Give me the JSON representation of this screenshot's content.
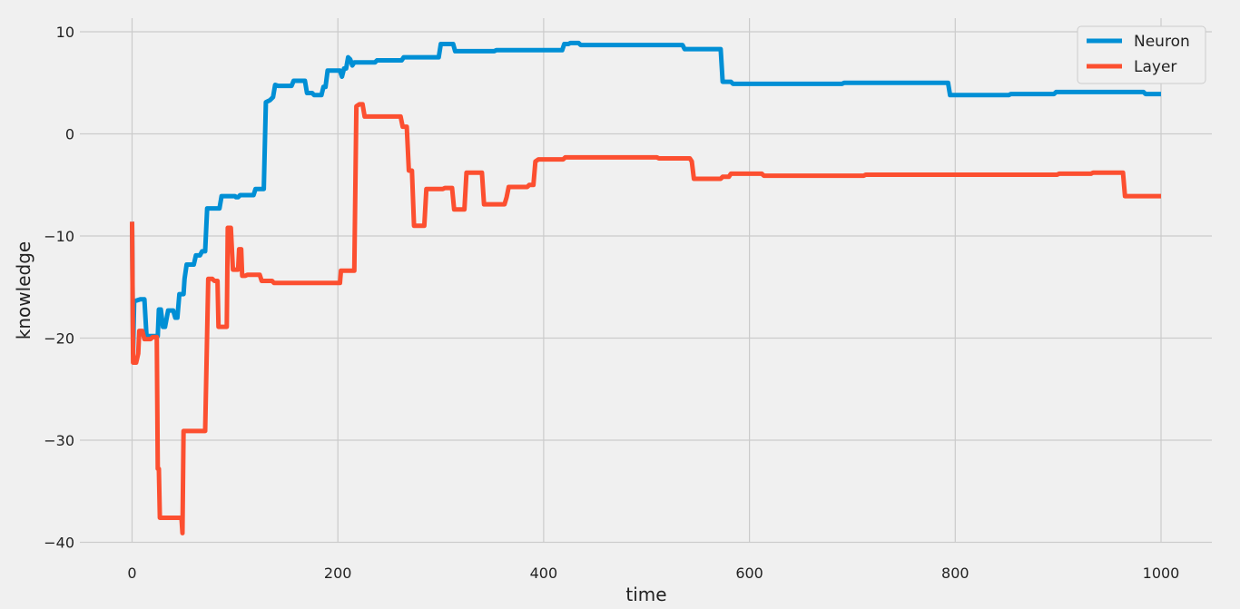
{
  "chart_data": {
    "type": "line",
    "title": "",
    "xlabel": "time",
    "ylabel": "knowledge",
    "xlim": [
      -50,
      1050
    ],
    "ylim": [
      -41,
      11
    ],
    "xticks": [
      0,
      200,
      400,
      600,
      800,
      1000
    ],
    "yticks": [
      10,
      0,
      -10,
      -20,
      -30,
      -40
    ],
    "xtick_labels": [
      "0",
      "200",
      "400",
      "600",
      "800",
      "1000"
    ],
    "ytick_labels": [
      "10",
      "0",
      "−10",
      "−20",
      "−30",
      "−40"
    ],
    "grid": true,
    "legend_position": "top-right",
    "series": [
      {
        "name": "Neuron",
        "color": "#008fd5",
        "points": [
          [
            0,
            -8.6
          ],
          [
            1,
            -21.5
          ],
          [
            2,
            -16.4
          ],
          [
            8,
            -16.2
          ],
          [
            12,
            -16.2
          ],
          [
            14,
            -19.8
          ],
          [
            25,
            -19.8
          ],
          [
            26,
            -17.2
          ],
          [
            28,
            -17.2
          ],
          [
            30,
            -18.9
          ],
          [
            32,
            -18.9
          ],
          [
            35,
            -17.3
          ],
          [
            40,
            -17.3
          ],
          [
            42,
            -18.0
          ],
          [
            44,
            -18.0
          ],
          [
            46,
            -15.7
          ],
          [
            50,
            -15.7
          ],
          [
            51,
            -14.2
          ],
          [
            53,
            -12.8
          ],
          [
            60,
            -12.8
          ],
          [
            62,
            -11.9
          ],
          [
            66,
            -11.9
          ],
          [
            68,
            -11.5
          ],
          [
            71,
            -11.5
          ],
          [
            73,
            -7.3
          ],
          [
            85,
            -7.3
          ],
          [
            87,
            -6.1
          ],
          [
            100,
            -6.1
          ],
          [
            101,
            -6.2
          ],
          [
            103,
            -6.2
          ],
          [
            105,
            -6.0
          ],
          [
            118,
            -6.0
          ],
          [
            120,
            -5.4
          ],
          [
            128,
            -5.4
          ],
          [
            130,
            3.1
          ],
          [
            134,
            3.3
          ],
          [
            137,
            3.6
          ],
          [
            139,
            4.8
          ],
          [
            142,
            4.7
          ],
          [
            155,
            4.7
          ],
          [
            157,
            5.2
          ],
          [
            168,
            5.2
          ],
          [
            170,
            4.0
          ],
          [
            175,
            4.0
          ],
          [
            177,
            3.8
          ],
          [
            184,
            3.8
          ],
          [
            186,
            4.6
          ],
          [
            188,
            4.6
          ],
          [
            190,
            6.2
          ],
          [
            202,
            6.2
          ],
          [
            204,
            5.6
          ],
          [
            206,
            6.4
          ],
          [
            208,
            6.4
          ],
          [
            210,
            7.5
          ],
          [
            212,
            7.3
          ],
          [
            214,
            6.7
          ],
          [
            216,
            7.0
          ],
          [
            236,
            7.0
          ],
          [
            238,
            7.2
          ],
          [
            262,
            7.2
          ],
          [
            264,
            7.5
          ],
          [
            298,
            7.5
          ],
          [
            300,
            8.8
          ],
          [
            312,
            8.8
          ],
          [
            314,
            8.1
          ],
          [
            352,
            8.1
          ],
          [
            354,
            8.2
          ],
          [
            418,
            8.2
          ],
          [
            420,
            8.8
          ],
          [
            424,
            8.8
          ],
          [
            426,
            8.9
          ],
          [
            434,
            8.9
          ],
          [
            436,
            8.7
          ],
          [
            535,
            8.7
          ],
          [
            537,
            8.3
          ],
          [
            572,
            8.3
          ],
          [
            574,
            5.1
          ],
          [
            582,
            5.1
          ],
          [
            584,
            4.9
          ],
          [
            690,
            4.9
          ],
          [
            692,
            5.0
          ],
          [
            793,
            5.0
          ],
          [
            795,
            3.8
          ],
          [
            852,
            3.8
          ],
          [
            854,
            3.9
          ],
          [
            896,
            3.9
          ],
          [
            898,
            4.1
          ],
          [
            983,
            4.1
          ],
          [
            985,
            3.9
          ],
          [
            1000,
            3.9
          ]
        ]
      },
      {
        "name": "Layer",
        "color": "#fc4f30",
        "points": [
          [
            0,
            -8.6
          ],
          [
            1,
            -22.4
          ],
          [
            4,
            -22.4
          ],
          [
            6,
            -21.5
          ],
          [
            7,
            -19.3
          ],
          [
            10,
            -19.3
          ],
          [
            12,
            -20.1
          ],
          [
            18,
            -20.1
          ],
          [
            20,
            -19.9
          ],
          [
            24,
            -19.9
          ],
          [
            25,
            -32.8
          ],
          [
            26,
            -32.8
          ],
          [
            27,
            -37.6
          ],
          [
            48,
            -37.6
          ],
          [
            49,
            -39.1
          ],
          [
            50,
            -29.1
          ],
          [
            71,
            -29.1
          ],
          [
            74,
            -14.2
          ],
          [
            78,
            -14.2
          ],
          [
            80,
            -14.4
          ],
          [
            83,
            -14.4
          ],
          [
            84,
            -18.9
          ],
          [
            92,
            -18.9
          ],
          [
            93,
            -9.2
          ],
          [
            96,
            -9.2
          ],
          [
            98,
            -13.3
          ],
          [
            103,
            -13.3
          ],
          [
            104,
            -11.3
          ],
          [
            106,
            -11.3
          ],
          [
            107,
            -13.9
          ],
          [
            110,
            -13.9
          ],
          [
            112,
            -13.8
          ],
          [
            124,
            -13.8
          ],
          [
            126,
            -14.4
          ],
          [
            136,
            -14.4
          ],
          [
            138,
            -14.6
          ],
          [
            202,
            -14.6
          ],
          [
            203,
            -13.4
          ],
          [
            216,
            -13.4
          ],
          [
            218,
            2.7
          ],
          [
            221,
            2.9
          ],
          [
            224,
            2.9
          ],
          [
            226,
            1.7
          ],
          [
            261,
            1.7
          ],
          [
            263,
            0.7
          ],
          [
            267,
            0.7
          ],
          [
            269,
            -3.6
          ],
          [
            272,
            -3.6
          ],
          [
            274,
            -9.0
          ],
          [
            284,
            -9.0
          ],
          [
            286,
            -5.4
          ],
          [
            302,
            -5.4
          ],
          [
            304,
            -5.3
          ],
          [
            311,
            -5.3
          ],
          [
            313,
            -7.4
          ],
          [
            323,
            -7.4
          ],
          [
            325,
            -3.8
          ],
          [
            340,
            -3.8
          ],
          [
            342,
            -6.9
          ],
          [
            362,
            -6.9
          ],
          [
            364,
            -6.2
          ],
          [
            366,
            -5.2
          ],
          [
            384,
            -5.2
          ],
          [
            386,
            -5.0
          ],
          [
            390,
            -5.0
          ],
          [
            392,
            -2.7
          ],
          [
            395,
            -2.5
          ],
          [
            419,
            -2.5
          ],
          [
            421,
            -2.3
          ],
          [
            510,
            -2.3
          ],
          [
            512,
            -2.4
          ],
          [
            542,
            -2.4
          ],
          [
            544,
            -2.7
          ],
          [
            546,
            -4.4
          ],
          [
            572,
            -4.4
          ],
          [
            574,
            -4.2
          ],
          [
            580,
            -4.2
          ],
          [
            582,
            -3.9
          ],
          [
            612,
            -3.9
          ],
          [
            614,
            -4.1
          ],
          [
            711,
            -4.1
          ],
          [
            713,
            -4.0
          ],
          [
            899,
            -4.0
          ],
          [
            901,
            -3.9
          ],
          [
            932,
            -3.9
          ],
          [
            934,
            -3.8
          ],
          [
            963,
            -3.8
          ],
          [
            965,
            -6.1
          ],
          [
            1000,
            -6.1
          ]
        ]
      }
    ]
  }
}
